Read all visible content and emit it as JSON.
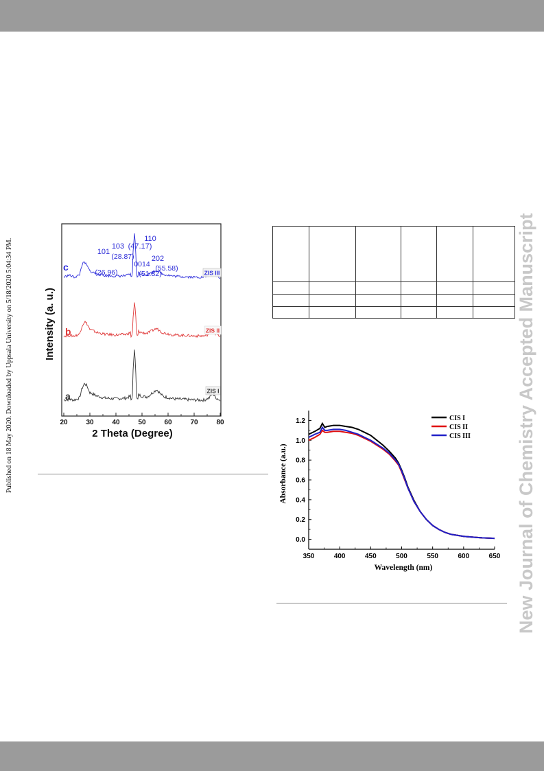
{
  "side_note": "Published on 18 May 2020. Downloaded by Uppsala University on 5/18/2020 5:04:34 PM.",
  "watermark": "New Journal of Chemistry Accepted Manuscript",
  "figure_xrd": {
    "y_axis_label": "Intensity (a. u.)",
    "x_axis_label": "2 Theta (Degree)",
    "x_ticks": [
      "20",
      "30",
      "40",
      "50",
      "60",
      "70",
      "80"
    ],
    "trace_letters": [
      "a",
      "b",
      "c"
    ],
    "trace_tags": [
      "ZIS I",
      "ZIS II",
      "ZIS III"
    ],
    "peak_labels": [
      {
        "index": "101",
        "angle": "(26.96)"
      },
      {
        "index": "103",
        "angle": "(28.87)"
      },
      {
        "index": "110",
        "angle": "(47.17)"
      },
      {
        "index": "0014",
        "angle": "(51.82)"
      },
      {
        "index": "202",
        "angle": "(55.58)"
      }
    ],
    "colors": {
      "a": "#333333",
      "b": "#e03a3a",
      "c": "#2d2ddb",
      "labels": "#2b2bd8"
    }
  },
  "table": {
    "rows": 4,
    "cols": 6,
    "cells": [
      [
        "",
        "",
        "",
        "",
        "",
        ""
      ],
      [
        "",
        "",
        "",
        "",
        "",
        ""
      ],
      [
        "",
        "",
        "",
        "",
        "",
        ""
      ],
      [
        "",
        "",
        "",
        "",
        "",
        ""
      ]
    ]
  },
  "chart_data": [
    {
      "type": "line",
      "xlabel": "2 Theta (Degree)",
      "ylabel": "Intensity (a. u.)",
      "xlim": [
        20,
        80
      ],
      "x_ticks": [
        20,
        30,
        40,
        50,
        60,
        70,
        80
      ],
      "y_ticks": [],
      "peaks_2theta": [
        26.96,
        28.87,
        47.17,
        51.82,
        55.58
      ],
      "series": [
        {
          "name": "ZIS I",
          "x": [
            20,
            22,
            24,
            26,
            27,
            28,
            29,
            30,
            33,
            36,
            40,
            44,
            46,
            47.17,
            48,
            50,
            52,
            55.58,
            58,
            62,
            66,
            70,
            74,
            76,
            77,
            78,
            80
          ],
          "y": [
            0.06,
            0.07,
            0.06,
            0.09,
            0.25,
            0.33,
            0.28,
            0.18,
            0.12,
            0.09,
            0.08,
            0.09,
            0.13,
            0.93,
            0.16,
            0.12,
            0.11,
            0.23,
            0.12,
            0.08,
            0.07,
            0.06,
            0.06,
            0.1,
            0.17,
            0.11,
            0.05
          ]
        },
        {
          "name": "ZIS II",
          "x": [
            20,
            22,
            24,
            26,
            27,
            28,
            29,
            30,
            33,
            36,
            40,
            44,
            46,
            47.17,
            48,
            50,
            52,
            55.58,
            58,
            62,
            66,
            70,
            74,
            76,
            77,
            78,
            80
          ],
          "y": [
            0.06,
            0.07,
            0.06,
            0.09,
            0.25,
            0.33,
            0.28,
            0.18,
            0.12,
            0.09,
            0.08,
            0.09,
            0.13,
            0.7,
            0.16,
            0.12,
            0.11,
            0.2,
            0.12,
            0.08,
            0.07,
            0.06,
            0.06,
            0.1,
            0.17,
            0.11,
            0.05
          ]
        },
        {
          "name": "ZIS III",
          "x": [
            20,
            22,
            24,
            26,
            27,
            28,
            29,
            30,
            33,
            36,
            40,
            44,
            46,
            47.17,
            48,
            50,
            52,
            55.58,
            58,
            62,
            66,
            70,
            74,
            76,
            77,
            78,
            80
          ],
          "y": [
            0.06,
            0.1,
            0.06,
            0.1,
            0.32,
            0.36,
            0.28,
            0.18,
            0.12,
            0.09,
            0.08,
            0.09,
            0.13,
            1.0,
            0.16,
            0.12,
            0.11,
            0.2,
            0.12,
            0.08,
            0.07,
            0.06,
            0.06,
            0.1,
            0.15,
            0.11,
            0.05
          ]
        }
      ]
    },
    {
      "type": "line",
      "xlabel": "Wavelength (nm)",
      "ylabel": "Absorbance (a.u.)",
      "xlim": [
        350,
        650
      ],
      "ylim": [
        -0.1,
        1.3
      ],
      "x_ticks": [
        350,
        400,
        450,
        500,
        550,
        600,
        650
      ],
      "y_ticks": [
        0.0,
        0.2,
        0.4,
        0.6,
        0.8,
        1.0,
        1.2
      ],
      "legend_position": "top-right",
      "x": [
        350,
        360,
        368,
        372,
        376,
        380,
        390,
        400,
        410,
        420,
        430,
        440,
        450,
        460,
        470,
        480,
        490,
        495,
        500,
        505,
        510,
        520,
        530,
        540,
        550,
        560,
        570,
        580,
        590,
        600,
        610,
        620,
        630,
        640,
        650
      ],
      "series": [
        {
          "name": "CIS I",
          "color": "#000000",
          "values": [
            1.06,
            1.09,
            1.12,
            1.17,
            1.13,
            1.14,
            1.15,
            1.15,
            1.14,
            1.13,
            1.11,
            1.08,
            1.05,
            1.0,
            0.95,
            0.89,
            0.82,
            0.77,
            0.7,
            0.62,
            0.53,
            0.39,
            0.28,
            0.2,
            0.14,
            0.1,
            0.07,
            0.05,
            0.04,
            0.03,
            0.025,
            0.02,
            0.015,
            0.012,
            0.01
          ]
        },
        {
          "name": "CIS II",
          "color": "#e01010",
          "values": [
            1.0,
            1.03,
            1.06,
            1.1,
            1.08,
            1.08,
            1.09,
            1.09,
            1.08,
            1.07,
            1.05,
            1.02,
            0.99,
            0.95,
            0.91,
            0.86,
            0.79,
            0.75,
            0.68,
            0.6,
            0.52,
            0.38,
            0.28,
            0.2,
            0.14,
            0.1,
            0.07,
            0.05,
            0.04,
            0.03,
            0.025,
            0.02,
            0.015,
            0.012,
            0.01
          ]
        },
        {
          "name": "CIS III",
          "color": "#2020c8",
          "values": [
            1.03,
            1.06,
            1.08,
            1.13,
            1.1,
            1.1,
            1.11,
            1.11,
            1.1,
            1.08,
            1.06,
            1.03,
            1.0,
            0.96,
            0.92,
            0.87,
            0.8,
            0.76,
            0.69,
            0.61,
            0.52,
            0.38,
            0.28,
            0.2,
            0.14,
            0.1,
            0.07,
            0.05,
            0.04,
            0.03,
            0.025,
            0.02,
            0.015,
            0.012,
            0.01
          ]
        }
      ]
    }
  ]
}
